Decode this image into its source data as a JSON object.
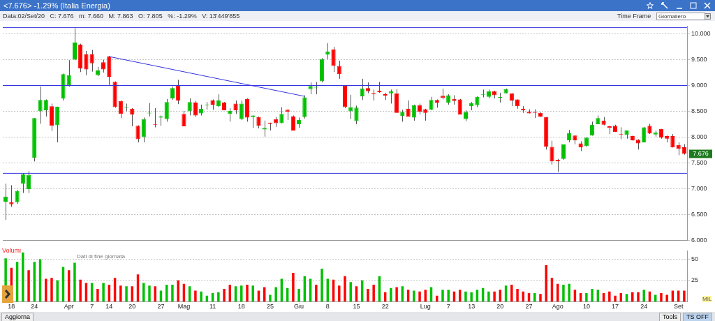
{
  "chart_data": [
    {
      "type": "candlestick",
      "title": "<7.676> -1.29% (Italia Energia)",
      "subtitle": "Data:02/Set/20   C: 7.676   m: 7.660   M: 7.863   O: 7.805   %: -1.29%   V: 13'449'855",
      "categories": [
        null,
        null,
        null,
        null,
        null,
        null,
        null,
        null,
        null,
        null,
        null,
        null,
        null,
        null,
        null,
        null,
        null,
        null,
        null,
        null,
        null,
        null,
        null,
        null,
        null,
        null,
        null,
        null,
        null,
        null,
        null,
        null,
        null,
        null,
        null,
        null,
        null,
        null,
        null,
        null,
        null,
        null,
        null,
        null,
        null,
        null,
        null,
        null,
        null,
        null,
        null,
        null,
        null,
        null,
        null,
        null,
        null,
        null,
        null,
        null,
        null,
        null,
        null,
        null,
        null,
        null,
        null,
        null,
        null,
        null,
        null,
        null,
        null,
        null,
        null,
        null,
        null,
        null,
        null,
        null,
        null,
        null,
        null,
        null,
        null,
        null,
        null,
        null,
        null,
        null,
        null,
        null,
        null,
        null,
        null,
        null,
        null,
        null,
        null,
        null,
        null,
        null,
        null,
        null,
        null,
        null,
        null,
        null,
        null,
        null,
        null,
        null,
        null,
        null,
        null,
        null,
        null,
        null,
        null
      ],
      "ohlc": [
        [
          6.75,
          7.1,
          6.4,
          6.85
        ],
        [
          6.74,
          7.07,
          6.65,
          6.7
        ],
        [
          6.74,
          6.98,
          6.71,
          6.96
        ],
        [
          7.1,
          7.3,
          6.92,
          7.28
        ],
        [
          6.99,
          7.34,
          6.92,
          7.27
        ],
        [
          7.6,
          8.37,
          7.53,
          8.37
        ],
        [
          8.5,
          8.98,
          8.26,
          8.72
        ],
        [
          8.52,
          8.73,
          8.4,
          8.72
        ],
        [
          8.6,
          8.65,
          8.12,
          8.22
        ],
        [
          8.23,
          8.59,
          7.9,
          8.59
        ],
        [
          8.75,
          9.23,
          8.71,
          9.22
        ],
        [
          9.0,
          9.49,
          8.98,
          9.2
        ],
        [
          9.5,
          10.11,
          9.49,
          9.83
        ],
        [
          9.79,
          9.81,
          9.26,
          9.33
        ],
        [
          9.6,
          9.67,
          9.2,
          9.31
        ],
        [
          9.6,
          9.69,
          9.27,
          9.43
        ],
        [
          9.2,
          9.36,
          9.18,
          9.29
        ],
        [
          9.45,
          9.5,
          9.25,
          9.31
        ],
        [
          9.56,
          9.57,
          9.01,
          9.17
        ],
        [
          9.07,
          9.08,
          8.57,
          8.58
        ],
        [
          8.7,
          8.71,
          8.37,
          8.45
        ],
        [
          8.57,
          8.65,
          8.5,
          8.58
        ],
        [
          8.55,
          8.56,
          8.21,
          8.44
        ],
        [
          8.22,
          8.23,
          7.9,
          7.96
        ],
        [
          8.0,
          8.38,
          7.9,
          8.35
        ],
        [
          8.46,
          8.66,
          8.4,
          8.47
        ],
        [
          8.25,
          8.56,
          8.19,
          8.24
        ],
        [
          8.38,
          8.42,
          8.22,
          8.4
        ],
        [
          8.35,
          8.74,
          8.3,
          8.68
        ],
        [
          8.75,
          8.98,
          8.72,
          8.95
        ],
        [
          9.0,
          9.11,
          8.64,
          8.71
        ],
        [
          8.45,
          8.51,
          8.21,
          8.21
        ],
        [
          8.5,
          8.75,
          8.42,
          8.68
        ],
        [
          8.67,
          8.7,
          8.39,
          8.42
        ],
        [
          8.46,
          8.63,
          8.42,
          8.55
        ],
        [
          8.62,
          8.68,
          8.53,
          8.63
        ],
        [
          8.71,
          8.73,
          8.53,
          8.63
        ],
        [
          8.6,
          8.83,
          8.58,
          8.71
        ],
        [
          8.67,
          8.68,
          8.52,
          8.52
        ],
        [
          8.45,
          8.56,
          8.3,
          8.51
        ],
        [
          8.65,
          8.71,
          8.45,
          8.52
        ],
        [
          8.35,
          8.71,
          8.33,
          8.65
        ],
        [
          8.74,
          8.75,
          8.3,
          8.38
        ],
        [
          8.39,
          8.42,
          8.18,
          8.42
        ],
        [
          8.39,
          8.4,
          8.17,
          8.22
        ],
        [
          8.15,
          8.32,
          8.01,
          8.18
        ],
        [
          8.28,
          8.28,
          8.13,
          8.26
        ],
        [
          8.35,
          8.39,
          8.2,
          8.27
        ],
        [
          8.27,
          8.58,
          8.27,
          8.45
        ],
        [
          8.53,
          8.54,
          8.33,
          8.49
        ],
        [
          8.4,
          8.42,
          8.13,
          8.13
        ],
        [
          8.25,
          8.38,
          8.18,
          8.33
        ],
        [
          8.39,
          8.81,
          8.36,
          8.77
        ],
        [
          8.93,
          9.06,
          8.83,
          8.99
        ],
        [
          8.96,
          9.07,
          8.83,
          8.97
        ],
        [
          9.08,
          9.53,
          9.06,
          9.51
        ],
        [
          9.6,
          9.82,
          9.51,
          9.66
        ],
        [
          9.7,
          9.75,
          9.26,
          9.38
        ],
        [
          9.38,
          9.48,
          9.13,
          9.22
        ],
        [
          9.0,
          9.0,
          8.56,
          8.58
        ],
        [
          8.5,
          8.82,
          8.35,
          8.58
        ],
        [
          8.31,
          8.61,
          8.25,
          8.57
        ],
        [
          8.79,
          9.13,
          8.72,
          8.94
        ],
        [
          8.95,
          9.06,
          8.85,
          8.89
        ],
        [
          8.85,
          8.92,
          8.71,
          8.83
        ],
        [
          8.9,
          9.07,
          8.86,
          8.87
        ],
        [
          8.83,
          8.86,
          8.72,
          8.8
        ],
        [
          8.85,
          8.92,
          8.65,
          8.89
        ],
        [
          8.85,
          8.93,
          8.47,
          8.47
        ],
        [
          8.41,
          8.53,
          8.3,
          8.49
        ],
        [
          8.55,
          8.71,
          8.4,
          8.4
        ],
        [
          8.38,
          8.63,
          8.32,
          8.62
        ],
        [
          8.62,
          8.65,
          8.44,
          8.49
        ],
        [
          8.54,
          8.55,
          8.32,
          8.47
        ],
        [
          8.53,
          8.78,
          8.52,
          8.72
        ],
        [
          8.72,
          8.73,
          8.57,
          8.67
        ],
        [
          8.8,
          8.94,
          8.73,
          8.76
        ],
        [
          8.67,
          8.83,
          8.63,
          8.81
        ],
        [
          8.74,
          8.81,
          8.63,
          8.7
        ],
        [
          8.73,
          8.74,
          8.44,
          8.44
        ],
        [
          8.35,
          8.52,
          8.31,
          8.49
        ],
        [
          8.6,
          8.68,
          8.52,
          8.66
        ],
        [
          8.62,
          8.79,
          8.58,
          8.78
        ],
        [
          8.82,
          8.92,
          8.77,
          8.83
        ],
        [
          8.78,
          8.92,
          8.75,
          8.89
        ],
        [
          8.89,
          8.9,
          8.75,
          8.81
        ],
        [
          8.76,
          8.86,
          8.67,
          8.78
        ],
        [
          8.85,
          8.94,
          8.85,
          8.93
        ],
        [
          8.85,
          8.85,
          8.6,
          8.71
        ],
        [
          8.73,
          8.73,
          8.55,
          8.6
        ],
        [
          8.55,
          8.6,
          8.47,
          8.52
        ],
        [
          8.49,
          8.54,
          8.46,
          8.46
        ],
        [
          8.48,
          8.54,
          8.37,
          8.47
        ],
        [
          8.47,
          8.48,
          8.39,
          8.4
        ],
        [
          8.39,
          8.39,
          7.76,
          7.81
        ],
        [
          7.81,
          7.93,
          7.47,
          7.53
        ],
        [
          7.56,
          7.58,
          7.33,
          7.53
        ],
        [
          7.58,
          7.86,
          7.56,
          7.86
        ],
        [
          7.94,
          8.14,
          7.9,
          8.08
        ],
        [
          8.03,
          8.04,
          7.86,
          7.94
        ],
        [
          7.88,
          7.92,
          7.73,
          7.8
        ],
        [
          7.83,
          8.0,
          7.81,
          7.99
        ],
        [
          8.03,
          8.3,
          8.03,
          8.24
        ],
        [
          8.25,
          8.42,
          8.25,
          8.37
        ],
        [
          8.32,
          8.39,
          8.23,
          8.24
        ],
        [
          8.21,
          8.22,
          8.06,
          8.18
        ],
        [
          8.22,
          8.24,
          8.1,
          8.1
        ],
        [
          8.06,
          8.19,
          7.96,
          8.05
        ],
        [
          8.04,
          8.13,
          7.97,
          8.13
        ],
        [
          8.02,
          8.03,
          7.93,
          7.94
        ],
        [
          7.95,
          7.96,
          7.76,
          7.88
        ],
        [
          7.9,
          8.2,
          7.9,
          8.19
        ],
        [
          8.22,
          8.26,
          8.06,
          8.07
        ],
        [
          8.05,
          8.13,
          8.01,
          8.09
        ],
        [
          8.16,
          8.16,
          7.97,
          7.99
        ],
        [
          8.02,
          8.03,
          7.9,
          7.97
        ],
        [
          8.02,
          8.06,
          7.8,
          7.8
        ],
        [
          7.85,
          7.9,
          7.65,
          7.77
        ],
        [
          7.805,
          7.863,
          7.66,
          7.676
        ]
      ],
      "colors": [
        "#00c000",
        "#ff0000",
        "#00c000",
        "#00c000",
        "#00c000",
        "#00c000",
        "#00c000",
        "#00c000",
        "#ff0000",
        "#00c000",
        "#00c000",
        "#00c000",
        "#00c000",
        "#ff0000",
        "#ff0000",
        "#ff0000",
        "#00c000",
        "#ff0000",
        "#ff0000",
        "#ff0000",
        "#ff0000",
        "#00c000",
        "#ff0000",
        "#ff0000",
        "#00c000",
        "#00c000",
        "#ff0000",
        "#00c000",
        "#00c000",
        "#00c000",
        "#ff0000",
        "#ff0000",
        "#00c000",
        "#ff0000",
        "#00c000",
        "#00c000",
        "#ff0000",
        "#00c000",
        "#ff0000",
        "#00c000",
        "#ff0000",
        "#00c000",
        "#ff0000",
        "#00c000",
        "#ff0000",
        "#00c000",
        "#ff0000",
        "#ff0000",
        "#00c000",
        "#ff0000",
        "#ff0000",
        "#00c000",
        "#00c000",
        "#00c000",
        "#00c000",
        "#00c000",
        "#00c000",
        "#ff0000",
        "#ff0000",
        "#ff0000",
        "#00c000",
        "#00c000",
        "#00c000",
        "#ff0000",
        "#ff0000",
        "#ff0000",
        "#ff0000",
        "#00c000",
        "#ff0000",
        "#00c000",
        "#ff0000",
        "#00c000",
        "#ff0000",
        "#ff0000",
        "#00c000",
        "#ff0000",
        "#ff0000",
        "#00c000",
        "#ff0000",
        "#ff0000",
        "#00c000",
        "#00c000",
        "#00c000",
        "#00c000",
        "#00c000",
        "#ff0000",
        "#00c000",
        "#00c000",
        "#ff0000",
        "#ff0000",
        "#ff0000",
        "#ff0000",
        "#ff0000",
        "#ff0000",
        "#ff0000",
        "#ff0000",
        "#ff0000",
        "#00c000",
        "#00c000",
        "#ff0000",
        "#ff0000",
        "#00c000",
        "#00c000",
        "#00c000",
        "#ff0000",
        "#ff0000",
        "#ff0000",
        "#ff0000",
        "#00c000",
        "#ff0000",
        "#ff0000",
        "#00c000",
        "#ff0000",
        "#00c000",
        "#ff0000",
        "#ff0000",
        "#ff0000",
        "#ff0000",
        "#ff0000"
      ],
      "series": [
        {
          "type": "line",
          "values": [
            null,
            null,
            null,
            null,
            null,
            null,
            null,
            null,
            null,
            null,
            null,
            null,
            null,
            null,
            null,
            null,
            null,
            null,
            9.56,
            null,
            null,
            null,
            null,
            null,
            null,
            null,
            null,
            null,
            null,
            null,
            null,
            null,
            null,
            null,
            null,
            null,
            null,
            null,
            null,
            null,
            null,
            null,
            null,
            null,
            null,
            null,
            null,
            null,
            null,
            null,
            null,
            null,
            8.79,
            null,
            null,
            null,
            null,
            null,
            null,
            null,
            null,
            null,
            null,
            null,
            null,
            null,
            null,
            null,
            null,
            null,
            null,
            null,
            null,
            null,
            null,
            null,
            null,
            null,
            null,
            null,
            null,
            null,
            null,
            null,
            null,
            null,
            null,
            null,
            null,
            null,
            null,
            null,
            null,
            null,
            null,
            null,
            null,
            null,
            null,
            null,
            null,
            null,
            null,
            null,
            null,
            null,
            null,
            null,
            null,
            null,
            null,
            null,
            null,
            null,
            null,
            null,
            null,
            null,
            null
          ],
          "color": "#3232e0"
        }
      ],
      "ylim": [
        6.0,
        10.15
      ],
      "yticks": [
        {
          "value": 6.0,
          "label": "6.000"
        },
        {
          "value": 6.5,
          "label": "6.500"
        },
        {
          "value": 7.0,
          "label": "7.000"
        },
        {
          "value": 7.5,
          "label": "7.500"
        },
        {
          "value": 8.0,
          "label": "8.000"
        },
        {
          "value": 8.5,
          "label": "8.500"
        },
        {
          "value": 9.0,
          "label": "9.000"
        },
        {
          "value": 9.5,
          "label": "9.500"
        },
        {
          "value": 10.0,
          "label": "10.000"
        }
      ],
      "ref_lines": [
        {
          "axis": "y",
          "value": 10.12,
          "color": "#3232e0"
        },
        {
          "axis": "y",
          "value": 9.0,
          "color": "#3232e0"
        },
        {
          "axis": "y",
          "value": 7.3,
          "color": "#3232e0"
        }
      ],
      "annotations": [
        "Dati di fine giornata",
        {
          "text": "7.676",
          "y": 7.676
        },
        "Time Frame",
        "Giornaliero",
        "Aggiorna",
        "Tools",
        "TS OFF"
      ],
      "grid": "y",
      "tick_labels": "y",
      "legend": false
    },
    {
      "type": "bar",
      "categories": [
        null,
        "18",
        null,
        null,
        null,
        "24",
        null,
        null,
        null,
        null,
        null,
        "Apr",
        null,
        null,
        null,
        "7",
        null,
        null,
        "14",
        null,
        null,
        null,
        "20",
        null,
        null,
        null,
        null,
        "27",
        null,
        null,
        null,
        "Mag",
        null,
        null,
        null,
        null,
        "11",
        null,
        null,
        null,
        null,
        "18",
        null,
        null,
        null,
        null,
        "25",
        null,
        null,
        null,
        null,
        "Giu",
        null,
        null,
        null,
        null,
        "8",
        null,
        null,
        null,
        null,
        "15",
        null,
        null,
        null,
        null,
        "22",
        null,
        null,
        null,
        null,
        null,
        null,
        "Lug",
        null,
        null,
        null,
        "7",
        null,
        null,
        null,
        "13",
        null,
        null,
        null,
        null,
        "20",
        null,
        null,
        null,
        null,
        "27",
        null,
        null,
        null,
        null,
        "Ago",
        null,
        null,
        null,
        null,
        "10",
        null,
        null,
        null,
        null,
        "17",
        null,
        null,
        null,
        null,
        "24",
        null,
        null,
        null,
        null,
        null,
        "Set",
        null
      ],
      "values": [
        51,
        40,
        47,
        58,
        37,
        47,
        50,
        27,
        28,
        25,
        41,
        37,
        46,
        26,
        22,
        22,
        15,
        22,
        20,
        28,
        19,
        18,
        18,
        32,
        22,
        19,
        18,
        13,
        20,
        20,
        25,
        21,
        18,
        13,
        12,
        7,
        10,
        11,
        15,
        20,
        18,
        19,
        20,
        19,
        13,
        17,
        8,
        17,
        27,
        16,
        34,
        15,
        30,
        27,
        20,
        39,
        27,
        26,
        19,
        30,
        23,
        18,
        25,
        15,
        20,
        30,
        11,
        16,
        17,
        18,
        14,
        13,
        12,
        14,
        17,
        7,
        14,
        14,
        12,
        14,
        12,
        11,
        14,
        16,
        12,
        12,
        14,
        19,
        20,
        15,
        12,
        10,
        10,
        9,
        43,
        28,
        21,
        20,
        21,
        14,
        10,
        10,
        15,
        14,
        10,
        12,
        7,
        10,
        9,
        11,
        11,
        14,
        12,
        8,
        10,
        8,
        13,
        13,
        13
      ],
      "colors": [
        "#00c000",
        "#ff0000",
        "#00c000",
        "#00c000",
        "#ff0000",
        "#00c000",
        "#00c000",
        "#ff0000",
        "#ff0000",
        "#00c000",
        "#00c000",
        "#ff0000",
        "#00c000",
        "#ff0000",
        "#ff0000",
        "#00c000",
        "#ff0000",
        "#00c000",
        "#ff0000",
        "#ff0000",
        "#ff0000",
        "#00c000",
        "#ff0000",
        "#ff0000",
        "#00c000",
        "#00c000",
        "#ff0000",
        "#00c000",
        "#00c000",
        "#00c000",
        "#ff0000",
        "#ff0000",
        "#00c000",
        "#ff0000",
        "#00c000",
        "#00c000",
        "#00c000",
        "#00c000",
        "#ff0000",
        "#ff0000",
        "#00c000",
        "#00c000",
        "#ff0000",
        "#00c000",
        "#ff0000",
        "#ff0000",
        "#00c000",
        "#00c000",
        "#00c000",
        "#00c000",
        "#ff0000",
        "#00c000",
        "#00c000",
        "#00c000",
        "#ff0000",
        "#00c000",
        "#00c000",
        "#ff0000",
        "#ff0000",
        "#ff0000",
        "#00c000",
        "#ff0000",
        "#00c000",
        "#ff0000",
        "#ff0000",
        "#00c000",
        "#ff0000",
        "#00c000",
        "#ff0000",
        "#00c000",
        "#ff0000",
        "#00c000",
        "#ff0000",
        "#ff0000",
        "#00c000",
        "#ff0000",
        "#00c000",
        "#00c000",
        "#ff0000",
        "#ff0000",
        "#00c000",
        "#00c000",
        "#00c000",
        "#00c000",
        "#00c000",
        "#ff0000",
        "#ff0000",
        "#00c000",
        "#ff0000",
        "#ff0000",
        "#ff0000",
        "#ff0000",
        "#00c000",
        "#ff0000",
        "#ff0000",
        "#ff0000",
        "#ff0000",
        "#00c000",
        "#00c000",
        "#ff0000",
        "#ff0000",
        "#00c000",
        "#00c000",
        "#00c000",
        "#ff0000",
        "#ff0000",
        "#ff0000",
        "#ff0000",
        "#00c000",
        "#ff0000",
        "#ff0000",
        "#00c000",
        "#ff0000",
        "#00c000",
        "#ff0000",
        "#ff0000",
        "#ff0000",
        "#ff0000",
        "#ff0000"
      ],
      "ylim": [
        0,
        60
      ],
      "yticks": [
        25,
        50
      ],
      "annotations": [
        "Volumi",
        "MIL"
      ],
      "grid": "y",
      "legend": false
    }
  ]
}
